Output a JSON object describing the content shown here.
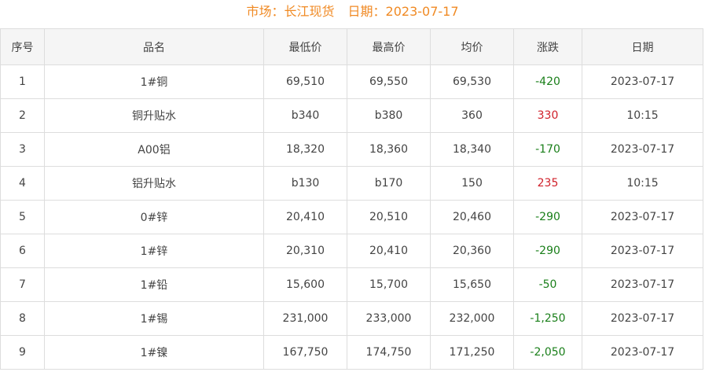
{
  "header": {
    "market_label": "市场：长江现货",
    "date_label": "日期：2023-07-17"
  },
  "colors": {
    "title": "#f08a24",
    "down": "#1a7f1a",
    "up": "#d0202a"
  },
  "table": {
    "columns": [
      "序号",
      "品名",
      "最低价",
      "最高价",
      "均价",
      "涨跌",
      "日期"
    ],
    "rows": [
      {
        "no": "1",
        "name": "1#铜",
        "low": "69,510",
        "high": "69,550",
        "avg": "69,530",
        "change": "-420",
        "date": "2023-07-17",
        "dir": "down"
      },
      {
        "no": "2",
        "name": "铜升贴水",
        "low": "b340",
        "high": "b380",
        "avg": "360",
        "change": "330",
        "date": "10:15",
        "dir": "up"
      },
      {
        "no": "3",
        "name": "A00铝",
        "low": "18,320",
        "high": "18,360",
        "avg": "18,340",
        "change": "-170",
        "date": "2023-07-17",
        "dir": "down"
      },
      {
        "no": "4",
        "name": "铝升贴水",
        "low": "b130",
        "high": "b170",
        "avg": "150",
        "change": "235",
        "date": "10:15",
        "dir": "up"
      },
      {
        "no": "5",
        "name": "0#锌",
        "low": "20,410",
        "high": "20,510",
        "avg": "20,460",
        "change": "-290",
        "date": "2023-07-17",
        "dir": "down"
      },
      {
        "no": "6",
        "name": "1#锌",
        "low": "20,310",
        "high": "20,410",
        "avg": "20,360",
        "change": "-290",
        "date": "2023-07-17",
        "dir": "down"
      },
      {
        "no": "7",
        "name": "1#铅",
        "low": "15,600",
        "high": "15,700",
        "avg": "15,650",
        "change": "-50",
        "date": "2023-07-17",
        "dir": "down"
      },
      {
        "no": "8",
        "name": "1#锡",
        "low": "231,000",
        "high": "233,000",
        "avg": "232,000",
        "change": "-1,250",
        "date": "2023-07-17",
        "dir": "down"
      },
      {
        "no": "9",
        "name": "1#镍",
        "low": "167,750",
        "high": "174,750",
        "avg": "171,250",
        "change": "-2,050",
        "date": "2023-07-17",
        "dir": "down"
      }
    ]
  }
}
